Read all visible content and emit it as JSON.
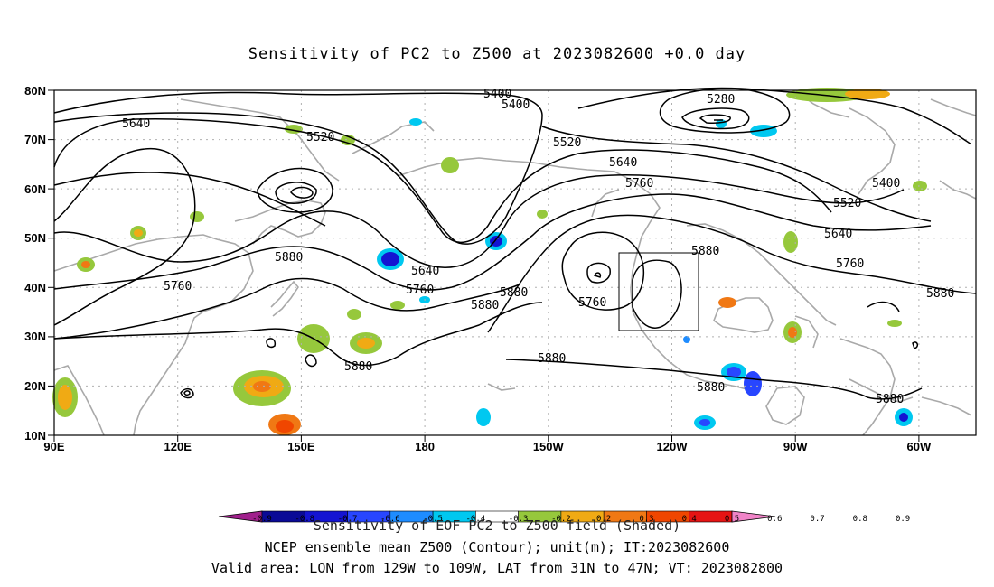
{
  "title": "Sensitivity of PC2 to Z500 at 2023082600 +0.0 day",
  "lon_ticks": [
    "90E",
    "120E",
    "150E",
    "180",
    "150W",
    "120W",
    "90W",
    "60W"
  ],
  "lat_ticks": [
    "80N",
    "70N",
    "60N",
    "50N",
    "40N",
    "30N",
    "20N",
    "10N"
  ],
  "contour_labels": [
    "5400",
    "5400",
    "5280",
    "5640",
    "5520",
    "5520",
    "5640",
    "5760",
    "5400",
    "5520",
    "5640",
    "5760",
    "5880",
    "5880",
    "5640",
    "5760",
    "5880",
    "5880",
    "5760",
    "5760",
    "5880",
    "5880",
    "5880",
    "5880",
    "5880",
    "5880"
  ],
  "colorbar": {
    "title": "Sensitivity of EOF PC2 to Z500 field (Shaded)",
    "tick_labels": [
      "-0.9",
      "-0.8",
      "-0.7",
      "-0.6",
      "-0.5",
      "-0.4",
      "-0.3",
      "-0.2",
      "0.2",
      "0.3",
      "0.4",
      "0.5",
      "0.6",
      "0.7",
      "0.8",
      "0.9"
    ],
    "colors": [
      "#a0208c",
      "#0a0a96",
      "#1414d2",
      "#2846ff",
      "#1e8cff",
      "#00c8f0",
      "#ffffff",
      "#96c83c",
      "#f0aa14",
      "#f07814",
      "#f04600",
      "#e61414",
      "#f084c8"
    ]
  },
  "footer": {
    "line1": "NCEP ensemble mean Z500 (Contour); unit(m); IT:2023082600",
    "line2": "Valid area: LON from 129W to 109W, LAT from 31N to 47N; VT: 2023082800"
  }
}
